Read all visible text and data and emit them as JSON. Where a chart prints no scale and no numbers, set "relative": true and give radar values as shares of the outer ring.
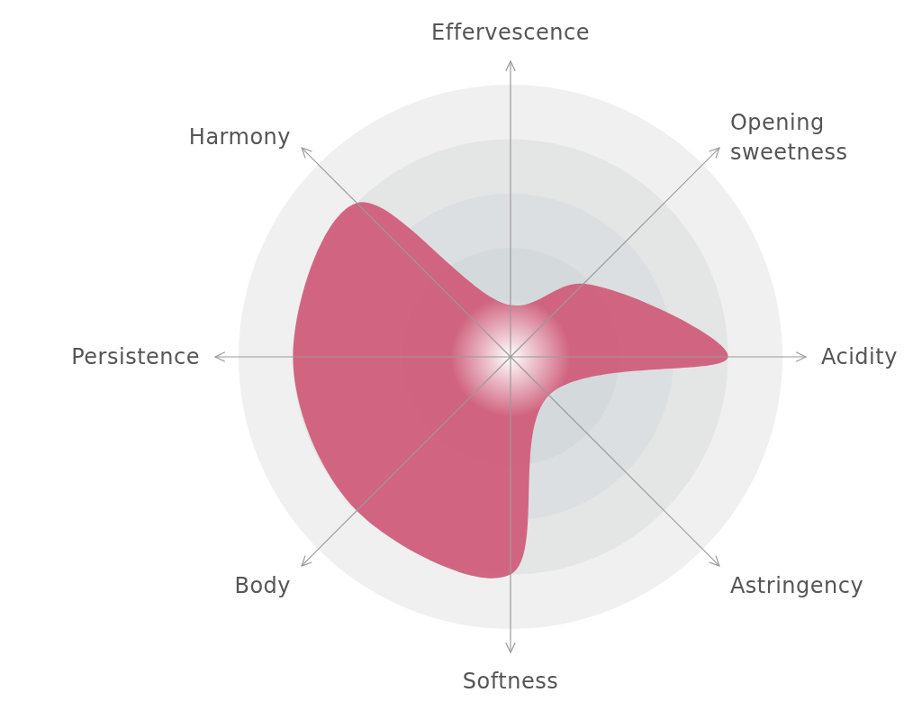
{
  "chart_data": {
    "type": "radar",
    "relative": true,
    "grid": true,
    "categories": [
      "Effervescence",
      "Opening sweetness",
      "Acidity",
      "Astringency",
      "Softness",
      "Body",
      "Persistence",
      "Harmony"
    ],
    "series": [
      {
        "color": "#cf5a78",
        "values": [
          0.19,
          0.38,
          0.8,
          0.2,
          0.8,
          0.8,
          0.8,
          0.8
        ]
      }
    ]
  }
}
